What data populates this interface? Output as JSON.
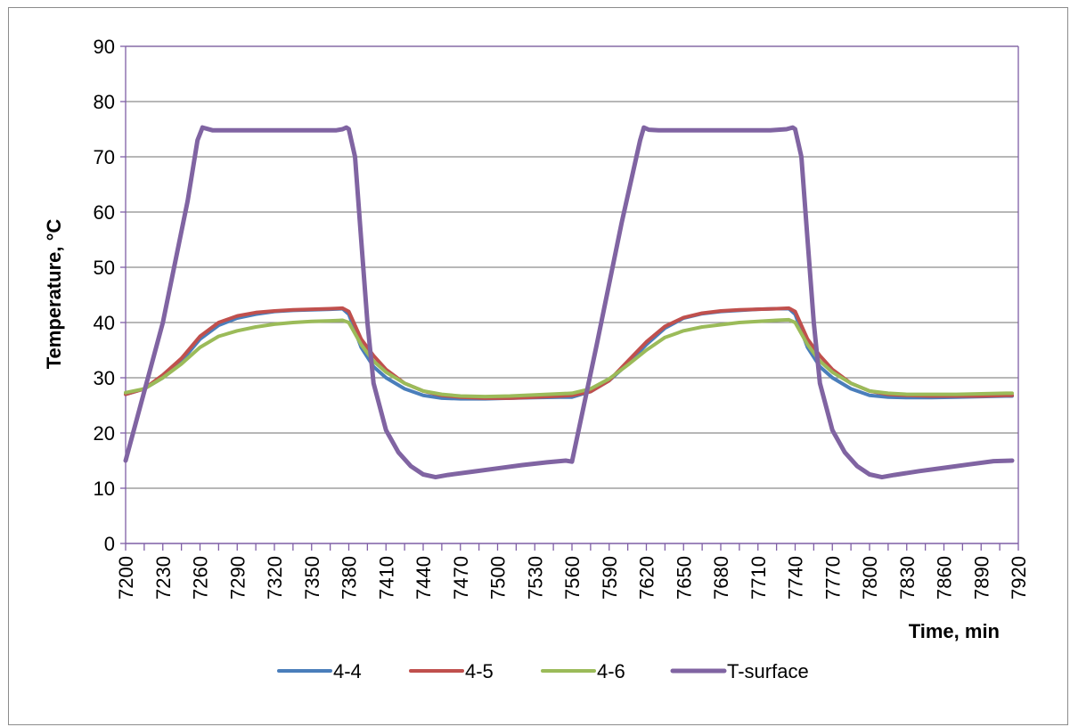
{
  "chart_data": {
    "type": "line",
    "title": "",
    "xlabel": "Time, min",
    "ylabel": "Temperature, °C",
    "xlim": [
      7200,
      7920
    ],
    "ylim": [
      0,
      90
    ],
    "x_ticks": [
      7200,
      7230,
      7260,
      7290,
      7320,
      7350,
      7380,
      7410,
      7440,
      7470,
      7500,
      7530,
      7560,
      7590,
      7620,
      7650,
      7680,
      7710,
      7740,
      7770,
      7800,
      7830,
      7860,
      7890,
      7920
    ],
    "y_ticks": [
      0,
      10,
      20,
      30,
      40,
      50,
      60,
      70,
      80,
      90
    ],
    "grid": "horizontal",
    "legend_position": "bottom",
    "series": [
      {
        "name": "4-4",
        "color": "#4a7ebb",
        "x": [
          7200,
          7215,
          7230,
          7245,
          7260,
          7275,
          7290,
          7305,
          7320,
          7335,
          7350,
          7365,
          7375,
          7380,
          7390,
          7400,
          7410,
          7425,
          7440,
          7455,
          7470,
          7490,
          7510,
          7530,
          7550,
          7560,
          7575,
          7590,
          7605,
          7620,
          7635,
          7650,
          7665,
          7680,
          7695,
          7710,
          7725,
          7735,
          7740,
          7750,
          7760,
          7770,
          7785,
          7800,
          7815,
          7830,
          7850,
          7870,
          7890,
          7910,
          7915
        ],
        "y": [
          27,
          28,
          30,
          33,
          37,
          39.5,
          40.8,
          41.5,
          42,
          42.2,
          42.3,
          42.4,
          42.5,
          41.5,
          35.5,
          32,
          30,
          28,
          26.8,
          26.3,
          26.2,
          26.2,
          26.3,
          26.4,
          26.5,
          26.5,
          27.5,
          29.5,
          32.5,
          36,
          39,
          40.8,
          41.6,
          42,
          42.2,
          42.4,
          42.5,
          42.5,
          41.5,
          35.5,
          32,
          30,
          28,
          26.8,
          26.5,
          26.4,
          26.4,
          26.5,
          26.6,
          26.7,
          26.7
        ]
      },
      {
        "name": "4-5",
        "color": "#c0504d",
        "x": [
          7200,
          7215,
          7230,
          7245,
          7260,
          7275,
          7290,
          7305,
          7320,
          7335,
          7350,
          7365,
          7375,
          7380,
          7390,
          7400,
          7410,
          7425,
          7440,
          7455,
          7470,
          7490,
          7510,
          7530,
          7550,
          7560,
          7575,
          7590,
          7605,
          7620,
          7635,
          7650,
          7665,
          7680,
          7695,
          7710,
          7725,
          7735,
          7740,
          7750,
          7760,
          7770,
          7785,
          7800,
          7815,
          7830,
          7850,
          7870,
          7890,
          7910,
          7915
        ],
        "y": [
          27,
          28,
          30.5,
          33.5,
          37.5,
          40,
          41.2,
          41.8,
          42.1,
          42.3,
          42.4,
          42.5,
          42.6,
          42,
          37,
          34,
          31.5,
          29,
          27.6,
          26.8,
          26.5,
          26.3,
          26.3,
          26.5,
          26.7,
          26.8,
          27.5,
          29.5,
          33,
          36.5,
          39.3,
          40.9,
          41.7,
          42.1,
          42.3,
          42.4,
          42.5,
          42.6,
          42,
          37,
          34,
          31.5,
          29,
          27.6,
          27,
          26.8,
          26.7,
          26.7,
          26.7,
          26.8,
          26.8
        ]
      },
      {
        "name": "4-6",
        "color": "#9bbb59",
        "x": [
          7200,
          7215,
          7230,
          7245,
          7260,
          7275,
          7290,
          7305,
          7320,
          7335,
          7350,
          7365,
          7375,
          7380,
          7390,
          7400,
          7410,
          7425,
          7440,
          7455,
          7470,
          7490,
          7510,
          7530,
          7550,
          7560,
          7575,
          7590,
          7605,
          7620,
          7635,
          7650,
          7665,
          7680,
          7695,
          7710,
          7725,
          7735,
          7740,
          7750,
          7760,
          7770,
          7785,
          7800,
          7815,
          7830,
          7850,
          7870,
          7890,
          7910,
          7915
        ],
        "y": [
          27.3,
          28,
          30,
          32.5,
          35.5,
          37.5,
          38.5,
          39.2,
          39.7,
          40,
          40.2,
          40.3,
          40.4,
          40,
          36,
          33,
          31,
          29,
          27.6,
          27,
          26.7,
          26.6,
          26.7,
          26.9,
          27.1,
          27.2,
          28,
          29.8,
          32.3,
          35,
          37.3,
          38.5,
          39.2,
          39.6,
          40,
          40.2,
          40.4,
          40.5,
          40,
          36,
          33,
          31,
          29,
          27.6,
          27.2,
          27,
          27,
          27,
          27.1,
          27.2,
          27.2
        ]
      },
      {
        "name": "T-surface",
        "color": "#8064a2",
        "x": [
          7200,
          7230,
          7250,
          7258,
          7262,
          7270,
          7290,
          7320,
          7350,
          7370,
          7375,
          7378,
          7380,
          7385,
          7390,
          7395,
          7400,
          7410,
          7420,
          7430,
          7440,
          7450,
          7460,
          7480,
          7500,
          7520,
          7540,
          7555,
          7560,
          7580,
          7600,
          7615,
          7618,
          7622,
          7630,
          7660,
          7690,
          7720,
          7733,
          7738,
          7740,
          7745,
          7750,
          7755,
          7760,
          7770,
          7780,
          7790,
          7800,
          7810,
          7820,
          7840,
          7860,
          7880,
          7900,
          7915
        ],
        "y": [
          15,
          40,
          62,
          73,
          75.3,
          74.8,
          74.8,
          74.8,
          74.8,
          74.8,
          75,
          75.3,
          75,
          70,
          55,
          40,
          29,
          20.5,
          16.5,
          14,
          12.5,
          12,
          12.4,
          13,
          13.6,
          14.2,
          14.7,
          15,
          14.8,
          36,
          58,
          73,
          75.3,
          74.9,
          74.8,
          74.8,
          74.8,
          74.8,
          75,
          75.3,
          75,
          70,
          55,
          40,
          29,
          20.5,
          16.5,
          14,
          12.5,
          12,
          12.4,
          13.1,
          13.7,
          14.3,
          14.9,
          15
        ]
      }
    ]
  }
}
